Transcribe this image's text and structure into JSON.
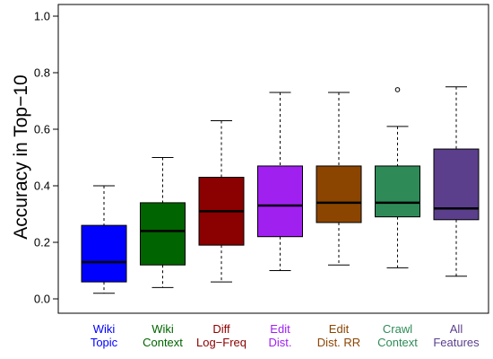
{
  "chart_data": {
    "type": "box",
    "ylabel": "Accuracy in Top−10",
    "ylim": [
      0.0,
      1.0
    ],
    "yticks": [
      {
        "value": 0.0,
        "label": "0.0"
      },
      {
        "value": 0.2,
        "label": "0.2"
      },
      {
        "value": 0.4,
        "label": "0.4"
      },
      {
        "value": 0.6,
        "label": "0.6"
      },
      {
        "value": 0.8,
        "label": "0.8"
      },
      {
        "value": 1.0,
        "label": "1.0"
      }
    ],
    "grid": false,
    "legend": "none",
    "boxes": [
      {
        "label_lines": [
          "Wiki",
          "Topic"
        ],
        "color": "#0000ff",
        "label_color": "#0000ff",
        "whisker_low": 0.02,
        "q1": 0.06,
        "median": 0.13,
        "q3": 0.26,
        "whisker_high": 0.4,
        "outliers": []
      },
      {
        "label_lines": [
          "Wiki",
          "Context"
        ],
        "color": "#006400",
        "label_color": "#006400",
        "whisker_low": 0.04,
        "q1": 0.12,
        "median": 0.24,
        "q3": 0.34,
        "whisker_high": 0.5,
        "outliers": []
      },
      {
        "label_lines": [
          "Diff",
          "Log−Freq"
        ],
        "color": "#8b0000",
        "label_color": "#8b0000",
        "whisker_low": 0.06,
        "q1": 0.19,
        "median": 0.31,
        "q3": 0.43,
        "whisker_high": 0.63,
        "outliers": []
      },
      {
        "label_lines": [
          "Edit",
          "Dist."
        ],
        "color": "#a020f0",
        "label_color": "#a020f0",
        "whisker_low": 0.1,
        "q1": 0.22,
        "median": 0.33,
        "q3": 0.47,
        "whisker_high": 0.73,
        "outliers": []
      },
      {
        "label_lines": [
          "Edit",
          "Dist. RR"
        ],
        "color": "#8b4500",
        "label_color": "#8b4500",
        "whisker_low": 0.12,
        "q1": 0.27,
        "median": 0.34,
        "q3": 0.47,
        "whisker_high": 0.73,
        "outliers": []
      },
      {
        "label_lines": [
          "Crawl",
          "Context"
        ],
        "color": "#2e8b57",
        "label_color": "#2e8b57",
        "whisker_low": 0.11,
        "q1": 0.29,
        "median": 0.34,
        "q3": 0.47,
        "whisker_high": 0.61,
        "outliers": [
          0.74
        ]
      },
      {
        "label_lines": [
          "All",
          "Features"
        ],
        "color": "#5b3f8c",
        "label_color": "#5b3f8c",
        "whisker_low": 0.08,
        "q1": 0.28,
        "median": 0.32,
        "q3": 0.53,
        "whisker_high": 0.75,
        "outliers": []
      }
    ]
  }
}
